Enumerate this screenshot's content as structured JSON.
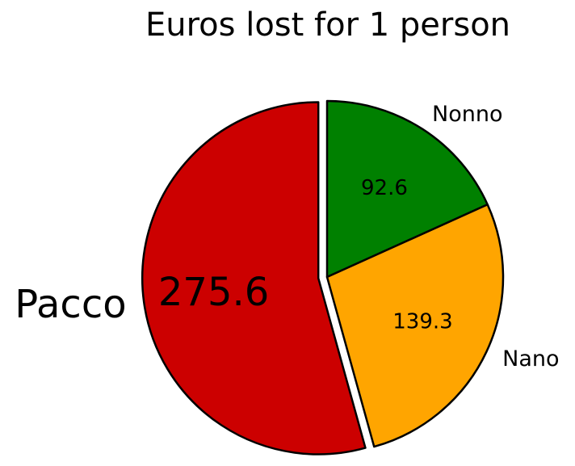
{
  "chart_data": {
    "type": "pie",
    "title": "Euros lost for 1 person",
    "slices": [
      {
        "label": "Nonno",
        "value": 92.6,
        "value_label": "92.6",
        "color": "#008000",
        "exploded": false,
        "label_size": "small"
      },
      {
        "label": "Nano",
        "value": 139.3,
        "value_label": "139.3",
        "color": "#FFA500",
        "exploded": false,
        "label_size": "small"
      },
      {
        "label": "Pacco",
        "value": 275.6,
        "value_label": "275.6",
        "color": "#CC0000",
        "exploded": true,
        "label_size": "large"
      }
    ],
    "start_angle": "90° (top), clockwise",
    "edge_color": "#000000"
  }
}
